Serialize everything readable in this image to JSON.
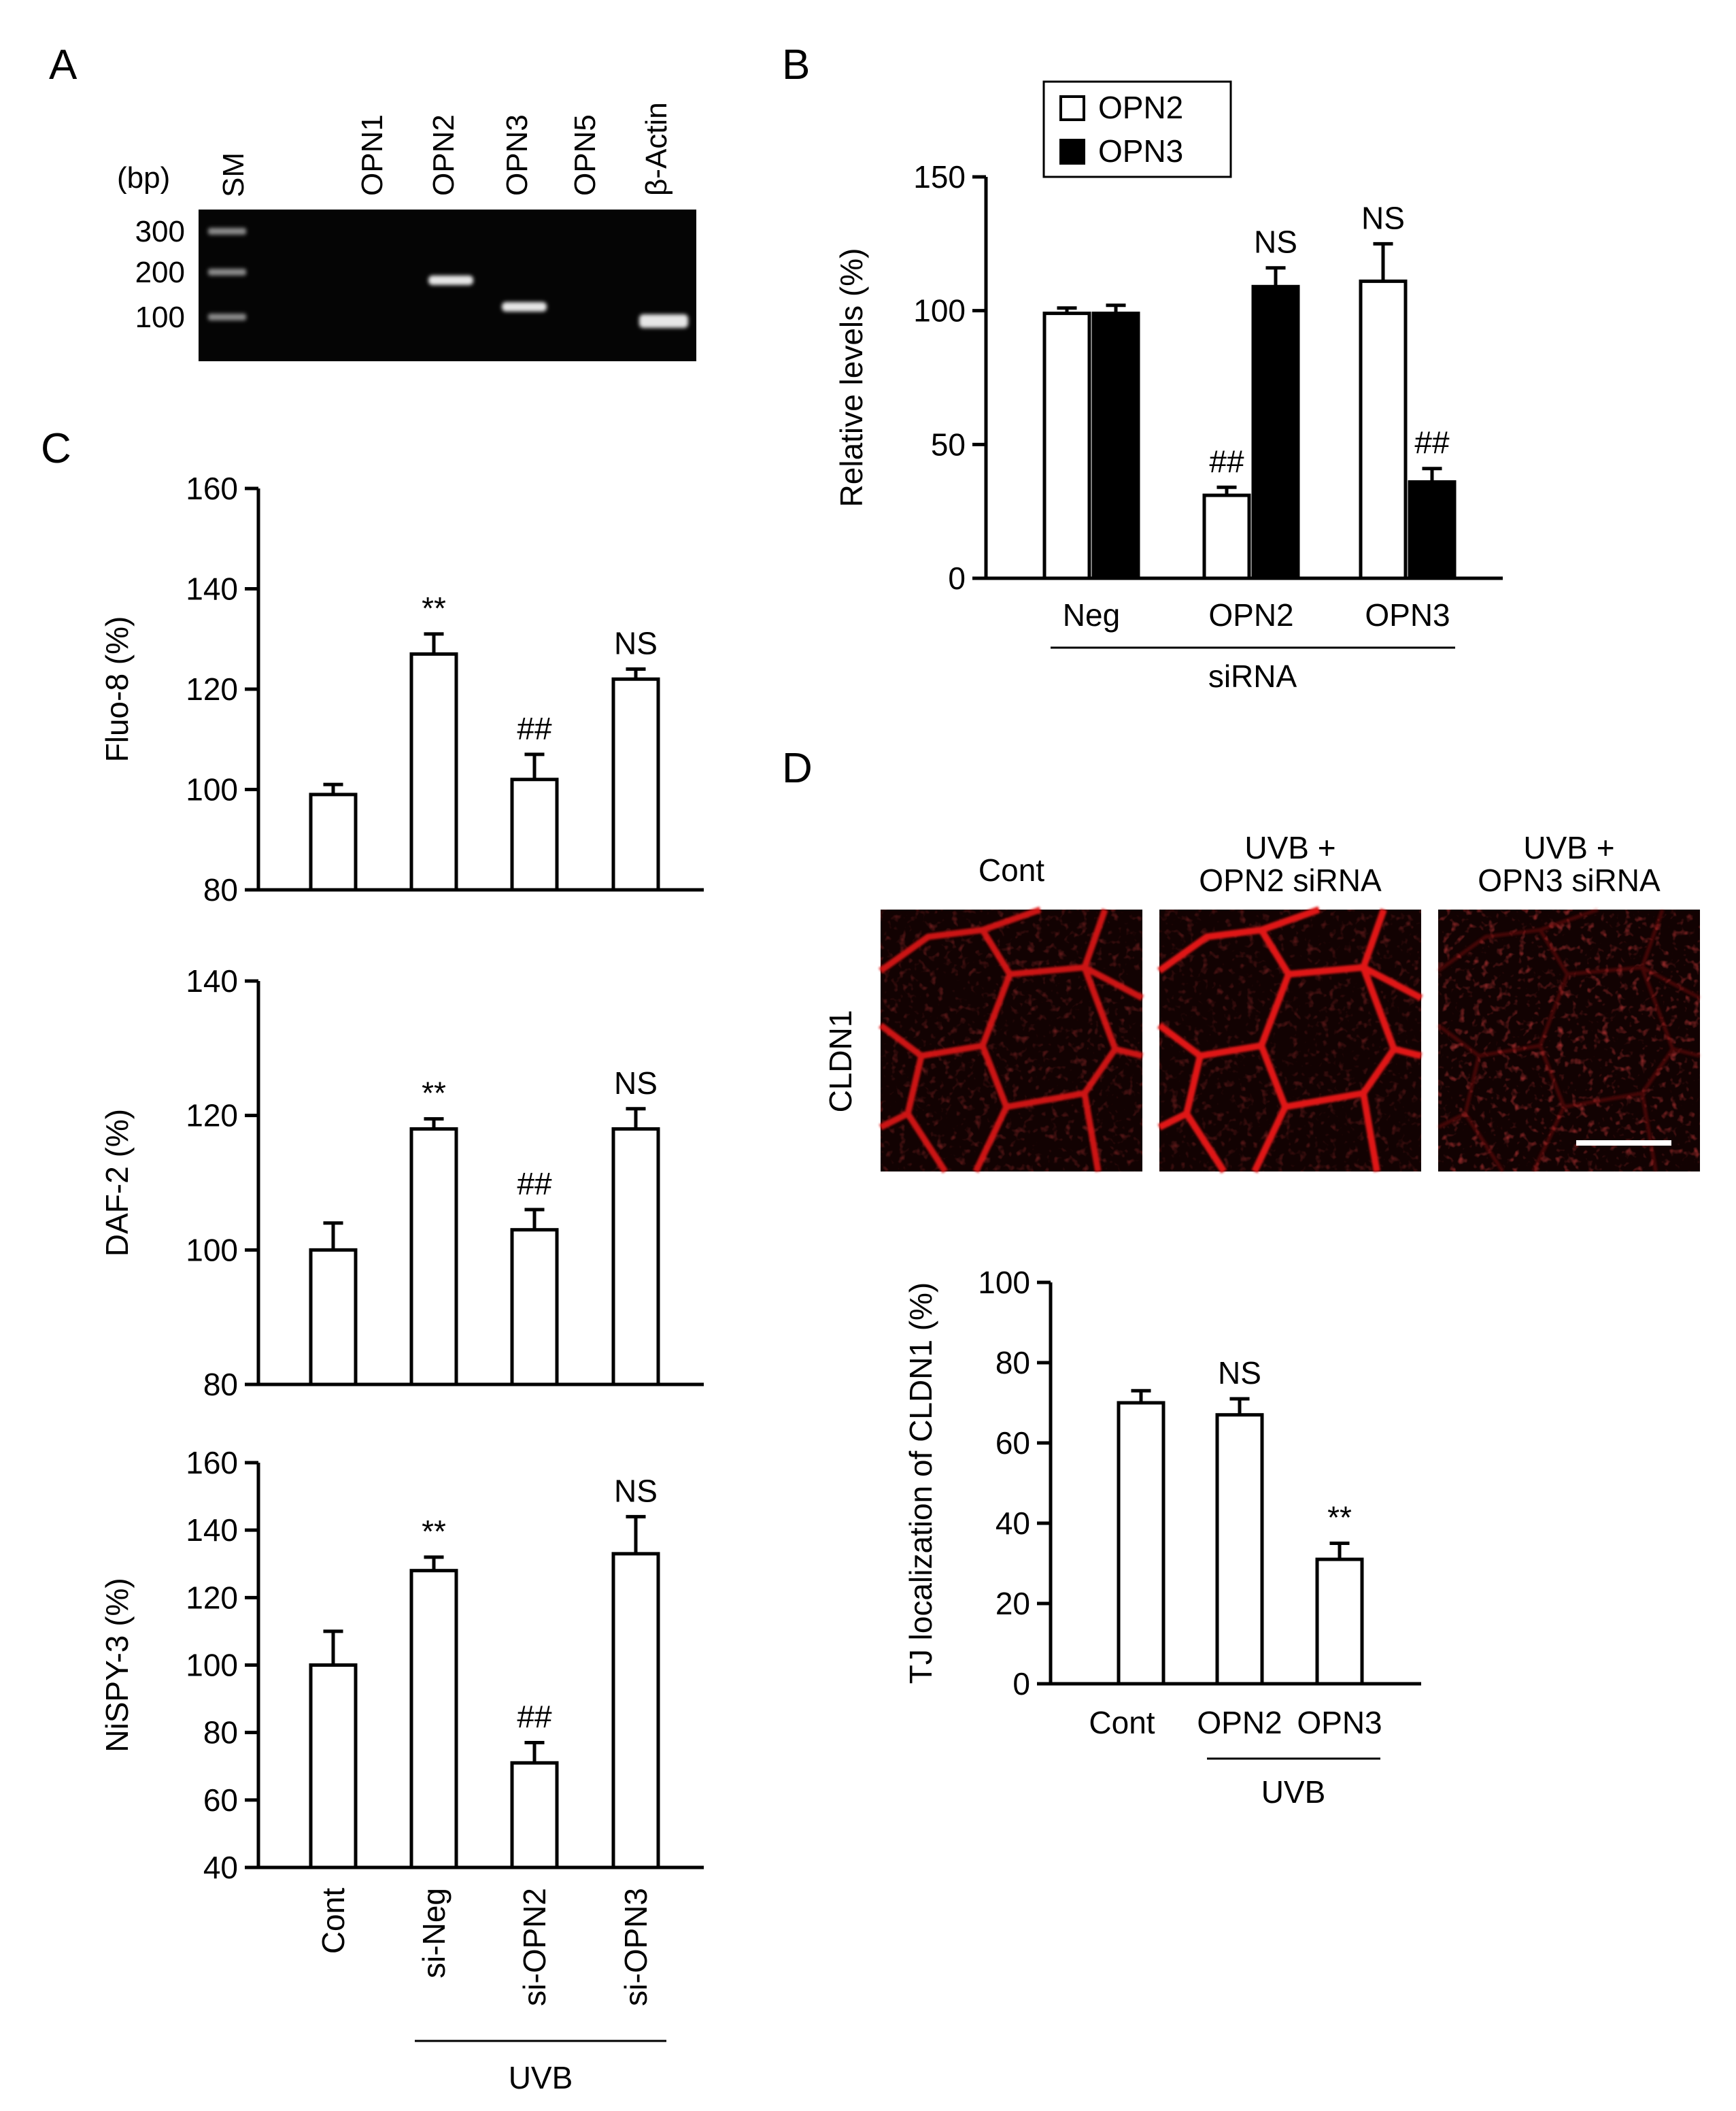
{
  "panels": {
    "a": {
      "label": "A"
    },
    "b": {
      "label": "B"
    },
    "c": {
      "label": "C"
    },
    "d": {
      "label": "D"
    }
  },
  "gel": {
    "bp_label": "(bp)",
    "marker_lane": "SM",
    "marker_sizes": [
      "300",
      "200",
      "100"
    ],
    "lanes": [
      "OPN1",
      "OPN2",
      "OPN3",
      "OPN5",
      "β-Actin"
    ],
    "band_present": [
      false,
      true,
      true,
      false,
      true
    ],
    "band_size_bp": [
      null,
      200,
      100,
      null,
      80
    ],
    "background": "#050505",
    "band_color": "#e6e6e6"
  },
  "colors": {
    "axis": "#000000",
    "bar_open": "#ffffff",
    "bar_filled": "#000000",
    "stain": "#e01818",
    "stain_background": "#120202",
    "scale_bar": "#ffffff"
  },
  "chart_data": [
    {
      "id": "B",
      "type": "bar",
      "ylabel": "Relative levels (%)",
      "ylim": [
        0,
        150
      ],
      "yticks": [
        "0",
        "50",
        "100",
        "150"
      ],
      "categories": [
        "Neg",
        "OPN2",
        "OPN3"
      ],
      "group_label": "siRNA",
      "legend": {
        "position": "top-left",
        "entries": [
          "OPN2",
          "OPN3"
        ]
      },
      "series": [
        {
          "name": "OPN2",
          "fill": "open",
          "values": [
            99,
            31,
            111
          ],
          "errors": [
            2,
            3,
            14
          ],
          "annotations": [
            "",
            "##",
            "NS"
          ]
        },
        {
          "name": "OPN3",
          "fill": "filled",
          "values": [
            99,
            109,
            36
          ],
          "errors": [
            3,
            7,
            5
          ],
          "annotations": [
            "",
            "NS",
            "##"
          ]
        }
      ]
    },
    {
      "id": "C-fluo8",
      "type": "bar",
      "ylabel": "Fluo-8 (%)",
      "ylim": [
        80,
        160
      ],
      "yticks": [
        "80",
        "100",
        "120",
        "140",
        "160"
      ],
      "values": [
        99,
        127,
        102,
        122
      ],
      "errors": [
        2,
        4,
        5,
        2
      ],
      "annotations": [
        "",
        "**",
        "##",
        "NS"
      ]
    },
    {
      "id": "C-daf2",
      "type": "bar",
      "ylabel": "DAF-2 (%)",
      "ylim": [
        80,
        140
      ],
      "yticks": [
        "80",
        "100",
        "120",
        "140"
      ],
      "values": [
        100,
        118,
        103,
        118
      ],
      "errors": [
        4,
        1.5,
        3,
        3
      ],
      "annotations": [
        "",
        "**",
        "##",
        "NS"
      ]
    },
    {
      "id": "C-nispy3",
      "type": "bar",
      "ylabel": "NiSPY-3 (%)",
      "ylim": [
        40,
        160
      ],
      "yticks": [
        "40",
        "60",
        "80",
        "100",
        "120",
        "140",
        "160"
      ],
      "values": [
        100,
        128,
        71,
        133
      ],
      "errors": [
        10,
        4,
        6,
        11
      ],
      "annotations": [
        "",
        "**",
        "##",
        "NS"
      ],
      "categories": [
        "Cont",
        "si-Neg",
        "si-OPN2",
        "si-OPN3"
      ],
      "group_label": "UVB"
    },
    {
      "id": "D",
      "type": "bar",
      "ylabel": "TJ localization of CLDN1 (%)",
      "ylim": [
        0,
        100
      ],
      "yticks": [
        "0",
        "20",
        "40",
        "60",
        "80",
        "100"
      ],
      "categories": [
        "Cont",
        "OPN2",
        "OPN3"
      ],
      "group_label": "UVB",
      "values": [
        70,
        67,
        31
      ],
      "errors": [
        3,
        4,
        4
      ],
      "annotations": [
        "",
        "NS",
        "**"
      ]
    }
  ],
  "micrographs": {
    "row_label": "CLDN1",
    "conditions": [
      {
        "title_lines": [
          "Cont"
        ],
        "junction_intensity": 0.9
      },
      {
        "title_lines": [
          "UVB +",
          "OPN2 siRNA"
        ],
        "junction_intensity": 1.0
      },
      {
        "title_lines": [
          "UVB +",
          "OPN3 siRNA"
        ],
        "junction_intensity": 0.25
      }
    ]
  }
}
